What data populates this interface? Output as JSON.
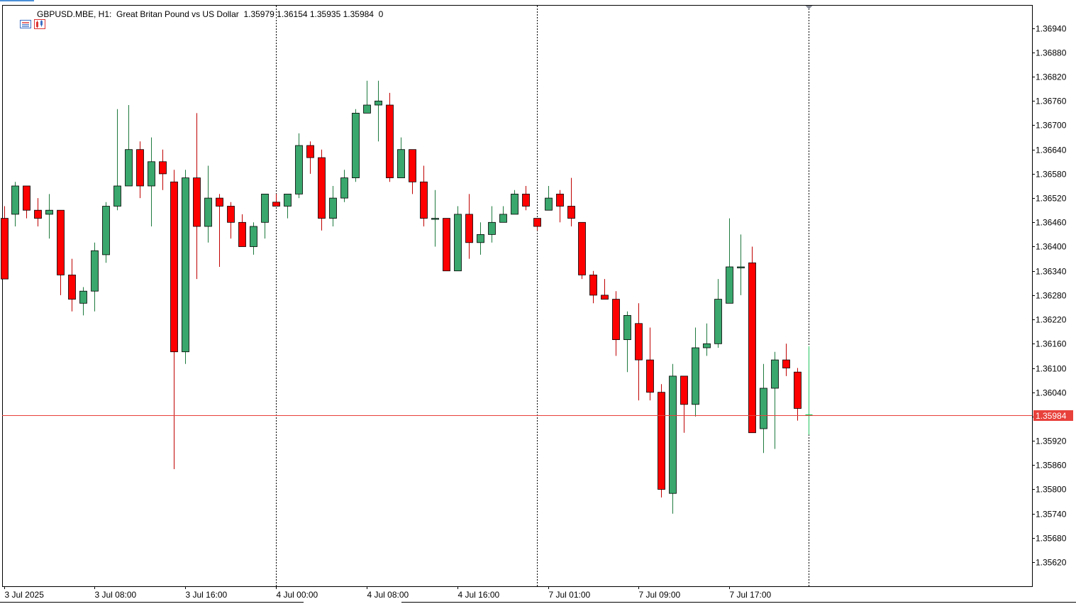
{
  "header": {
    "symbol": "GBPUSD.MBE, H1:",
    "description": "Great Britan Pound vs US Dollar",
    "ohlc": "1.35979 1.36154 1.35935 1.35984",
    "volume_counter": "0",
    "icons": [
      "trade-panel-icon",
      "chart-window-icon"
    ]
  },
  "colors": {
    "bull": "#3aa76d",
    "bear": "#ff0000",
    "wick_bull": "#1e7a3e",
    "wick_bear": "#c00000",
    "last_bar": "#22c55e",
    "bid_line": "#e8413b",
    "grid": "#000000",
    "background": "#ffffff"
  },
  "chart_data": {
    "type": "candlestick",
    "symbol": "GBPUSD.MBE",
    "timeframe": "H1",
    "title": "GBPUSD.MBE, H1:  Great Britan Pound vs US Dollar",
    "current_price": "1.35984",
    "ylim": [
      1.3556,
      1.37
    ],
    "y_ticks": [
      "1.36940",
      "1.36880",
      "1.36820",
      "1.36760",
      "1.36700",
      "1.36640",
      "1.36580",
      "1.36520",
      "1.36460",
      "1.36400",
      "1.36340",
      "1.36280",
      "1.36220",
      "1.36160",
      "1.36100",
      "1.36040",
      "1.35980",
      "1.35920",
      "1.35860",
      "1.35800",
      "1.35740",
      "1.35680",
      "1.35620"
    ],
    "x_ticks": [
      {
        "bar": 0,
        "label": "3 Jul 2025"
      },
      {
        "bar": 8,
        "label": "3 Jul 08:00"
      },
      {
        "bar": 16,
        "label": "3 Jul 16:00"
      },
      {
        "bar": 24,
        "label": "4 Jul 00:00"
      },
      {
        "bar": 32,
        "label": "4 Jul 08:00"
      },
      {
        "bar": 40,
        "label": "4 Jul 16:00"
      },
      {
        "bar": 48,
        "label": "7 Jul 01:00"
      },
      {
        "bar": 56,
        "label": "7 Jul 09:00"
      },
      {
        "bar": 64,
        "label": "7 Jul 17:00"
      }
    ],
    "separators": [
      24,
      47,
      71
    ],
    "grid": false,
    "candles": [
      {
        "o": 1.3647,
        "h": 1.365,
        "l": 1.3632,
        "c": 1.3632
      },
      {
        "o": 1.3648,
        "h": 1.3656,
        "l": 1.3645,
        "c": 1.3655
      },
      {
        "o": 1.3655,
        "h": 1.3655,
        "l": 1.3647,
        "c": 1.3649
      },
      {
        "o": 1.3649,
        "h": 1.3652,
        "l": 1.3645,
        "c": 1.3647
      },
      {
        "o": 1.3648,
        "h": 1.3653,
        "l": 1.3642,
        "c": 1.3649
      },
      {
        "o": 1.3649,
        "h": 1.3649,
        "l": 1.3628,
        "c": 1.3633
      },
      {
        "o": 1.3633,
        "h": 1.3637,
        "l": 1.3624,
        "c": 1.3627
      },
      {
        "o": 1.3626,
        "h": 1.363,
        "l": 1.3623,
        "c": 1.3629
      },
      {
        "o": 1.3629,
        "h": 1.3641,
        "l": 1.3624,
        "c": 1.3639
      },
      {
        "o": 1.3638,
        "h": 1.3651,
        "l": 1.3636,
        "c": 1.365
      },
      {
        "o": 1.365,
        "h": 1.3674,
        "l": 1.3649,
        "c": 1.3655
      },
      {
        "o": 1.3655,
        "h": 1.3675,
        "l": 1.3655,
        "c": 1.3664
      },
      {
        "o": 1.3664,
        "h": 1.3666,
        "l": 1.3652,
        "c": 1.3655
      },
      {
        "o": 1.3655,
        "h": 1.3667,
        "l": 1.3645,
        "c": 1.3661
      },
      {
        "o": 1.3661,
        "h": 1.3664,
        "l": 1.3654,
        "c": 1.3658
      },
      {
        "o": 1.3656,
        "h": 1.3659,
        "l": 1.3585,
        "c": 1.3614
      },
      {
        "o": 1.3614,
        "h": 1.3659,
        "l": 1.3611,
        "c": 1.3657
      },
      {
        "o": 1.3657,
        "h": 1.3673,
        "l": 1.3632,
        "c": 1.3645
      },
      {
        "o": 1.3645,
        "h": 1.366,
        "l": 1.3641,
        "c": 1.3652
      },
      {
        "o": 1.3652,
        "h": 1.3653,
        "l": 1.3635,
        "c": 1.365
      },
      {
        "o": 1.365,
        "h": 1.3651,
        "l": 1.3642,
        "c": 1.3646
      },
      {
        "o": 1.3646,
        "h": 1.3648,
        "l": 1.364,
        "c": 1.364
      },
      {
        "o": 1.364,
        "h": 1.3646,
        "l": 1.3638,
        "c": 1.3645
      },
      {
        "o": 1.3646,
        "h": 1.3653,
        "l": 1.3642,
        "c": 1.3653
      },
      {
        "o": 1.3651,
        "h": 1.3653,
        "l": 1.365,
        "c": 1.365
      },
      {
        "o": 1.365,
        "h": 1.3653,
        "l": 1.3647,
        "c": 1.3653
      },
      {
        "o": 1.3653,
        "h": 1.3668,
        "l": 1.3652,
        "c": 1.3665
      },
      {
        "o": 1.3665,
        "h": 1.3666,
        "l": 1.3658,
        "c": 1.3662
      },
      {
        "o": 1.3662,
        "h": 1.3664,
        "l": 1.3644,
        "c": 1.3647
      },
      {
        "o": 1.3647,
        "h": 1.3655,
        "l": 1.3645,
        "c": 1.3652
      },
      {
        "o": 1.3652,
        "h": 1.3659,
        "l": 1.3651,
        "c": 1.3657
      },
      {
        "o": 1.3657,
        "h": 1.3674,
        "l": 1.3656,
        "c": 1.3673
      },
      {
        "o": 1.3673,
        "h": 1.3681,
        "l": 1.3673,
        "c": 1.3675
      },
      {
        "o": 1.3675,
        "h": 1.3681,
        "l": 1.3666,
        "c": 1.3676
      },
      {
        "o": 1.3675,
        "h": 1.3678,
        "l": 1.3656,
        "c": 1.3657
      },
      {
        "o": 1.3657,
        "h": 1.3667,
        "l": 1.3657,
        "c": 1.3664
      },
      {
        "o": 1.3664,
        "h": 1.3664,
        "l": 1.3653,
        "c": 1.3656
      },
      {
        "o": 1.3656,
        "h": 1.366,
        "l": 1.3645,
        "c": 1.3647
      },
      {
        "o": 1.3647,
        "h": 1.3654,
        "l": 1.364,
        "c": 1.3647
      },
      {
        "o": 1.3647,
        "h": 1.3647,
        "l": 1.3634,
        "c": 1.3634
      },
      {
        "o": 1.3634,
        "h": 1.365,
        "l": 1.3634,
        "c": 1.3648
      },
      {
        "o": 1.3648,
        "h": 1.3653,
        "l": 1.3637,
        "c": 1.3641
      },
      {
        "o": 1.3641,
        "h": 1.3646,
        "l": 1.3638,
        "c": 1.3643
      },
      {
        "o": 1.3643,
        "h": 1.365,
        "l": 1.3641,
        "c": 1.3646
      },
      {
        "o": 1.3646,
        "h": 1.365,
        "l": 1.3646,
        "c": 1.3648
      },
      {
        "o": 1.3648,
        "h": 1.3654,
        "l": 1.3648,
        "c": 1.3653
      },
      {
        "o": 1.3653,
        "h": 1.3655,
        "l": 1.3649,
        "c": 1.365
      },
      {
        "o": 1.3647,
        "h": 1.3647,
        "l": 1.3644,
        "c": 1.3645
      },
      {
        "o": 1.3649,
        "h": 1.3655,
        "l": 1.3649,
        "c": 1.3652
      },
      {
        "o": 1.3653,
        "h": 1.3654,
        "l": 1.3646,
        "c": 1.365
      },
      {
        "o": 1.365,
        "h": 1.3657,
        "l": 1.3645,
        "c": 1.3647
      },
      {
        "o": 1.3646,
        "h": 1.3646,
        "l": 1.3632,
        "c": 1.3633
      },
      {
        "o": 1.3633,
        "h": 1.3634,
        "l": 1.3626,
        "c": 1.3628
      },
      {
        "o": 1.3628,
        "h": 1.3632,
        "l": 1.3627,
        "c": 1.3627
      },
      {
        "o": 1.3627,
        "h": 1.3629,
        "l": 1.3613,
        "c": 1.3617
      },
      {
        "o": 1.3617,
        "h": 1.3624,
        "l": 1.3609,
        "c": 1.3623
      },
      {
        "o": 1.3621,
        "h": 1.3626,
        "l": 1.3602,
        "c": 1.3612
      },
      {
        "o": 1.3612,
        "h": 1.362,
        "l": 1.3602,
        "c": 1.3604
      },
      {
        "o": 1.3604,
        "h": 1.3606,
        "l": 1.3578,
        "c": 1.358
      },
      {
        "o": 1.3579,
        "h": 1.3611,
        "l": 1.3574,
        "c": 1.3608
      },
      {
        "o": 1.3608,
        "h": 1.3608,
        "l": 1.3594,
        "c": 1.3601
      },
      {
        "o": 1.3601,
        "h": 1.362,
        "l": 1.3598,
        "c": 1.3615
      },
      {
        "o": 1.3615,
        "h": 1.3621,
        "l": 1.3613,
        "c": 1.3616
      },
      {
        "o": 1.3616,
        "h": 1.3632,
        "l": 1.3615,
        "c": 1.3627
      },
      {
        "o": 1.3626,
        "h": 1.3647,
        "l": 1.3626,
        "c": 1.3635
      },
      {
        "o": 1.3635,
        "h": 1.3643,
        "l": 1.3628,
        "c": 1.3635
      },
      {
        "o": 1.3636,
        "h": 1.364,
        "l": 1.3594,
        "c": 1.3594
      },
      {
        "o": 1.3595,
        "h": 1.3611,
        "l": 1.3589,
        "c": 1.3605
      },
      {
        "o": 1.3605,
        "h": 1.3614,
        "l": 1.359,
        "c": 1.3612
      },
      {
        "o": 1.3612,
        "h": 1.3616,
        "l": 1.3608,
        "c": 1.361
      },
      {
        "o": 1.3609,
        "h": 1.361,
        "l": 1.3597,
        "c": 1.36
      },
      {
        "o": 1.35979,
        "h": 1.36154,
        "l": 1.35935,
        "c": 1.35984
      }
    ]
  }
}
